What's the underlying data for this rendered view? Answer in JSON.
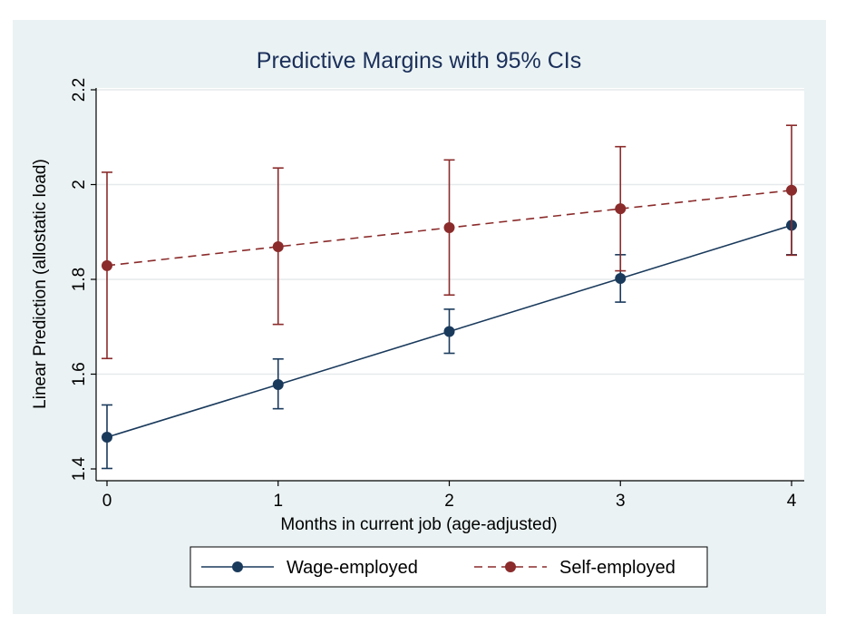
{
  "chart_data": {
    "type": "line",
    "title": "Predictive Margins with 95% CIs",
    "xlabel": "Months in current job (age-adjusted)",
    "ylabel": "Linear Prediction (allostatic load)",
    "x": [
      0,
      1,
      2,
      3,
      4
    ],
    "x_ticks": [
      "0",
      "1",
      "2",
      "3",
      "4"
    ],
    "y_ticks": [
      "1.4",
      "1.6",
      "1.8",
      "2",
      "2.2"
    ],
    "y_tick_values": [
      1.4,
      1.6,
      1.8,
      2.0,
      2.2
    ],
    "xlim": [
      0,
      4
    ],
    "ylim": [
      1.4,
      2.2
    ],
    "grid": true,
    "legend_position": "bottom",
    "series": [
      {
        "name": "Wage-employed",
        "color": "#1a3a5c",
        "line_style": "solid",
        "values": [
          1.467,
          1.578,
          1.69,
          1.802,
          1.914
        ],
        "ci_lower": [
          1.401,
          1.527,
          1.644,
          1.752,
          1.852
        ],
        "ci_upper": [
          1.535,
          1.632,
          1.737,
          1.852,
          1.987
        ]
      },
      {
        "name": "Self-employed",
        "color": "#8b2b2b",
        "line_style": "dashed",
        "values": [
          1.829,
          1.869,
          1.909,
          1.949,
          1.988
        ],
        "ci_lower": [
          1.633,
          1.705,
          1.767,
          1.818,
          1.851
        ],
        "ci_upper": [
          2.026,
          2.035,
          2.052,
          2.08,
          2.125
        ]
      }
    ]
  }
}
